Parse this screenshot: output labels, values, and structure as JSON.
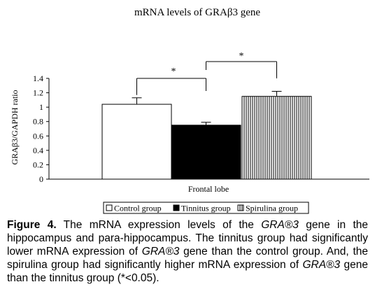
{
  "chart_data": {
    "type": "bar",
    "title": "mRNA levels of GRAβ3 gene",
    "ylabel": "GRAβ3/GAPDH ratio",
    "xlabel": "Frontal lobe",
    "ylim": [
      0,
      1.4
    ],
    "yticks": [
      "0",
      "0.2",
      "0.4",
      "0.6",
      "0.8",
      "1",
      "1.2",
      "1.4"
    ],
    "series": [
      {
        "name": "Control group",
        "values": [
          1.04
        ],
        "error": [
          0.09
        ],
        "color": "#ffffff",
        "pattern": "none"
      },
      {
        "name": "Tinnitus group",
        "values": [
          0.75
        ],
        "error": [
          0.04
        ],
        "color": "#000000",
        "pattern": "solid"
      },
      {
        "name": "Spirulina group",
        "values": [
          1.15
        ],
        "error": [
          0.07
        ],
        "color": "#ffffff",
        "pattern": "vertical-lines"
      }
    ],
    "annotations": [
      {
        "text": "*",
        "between": [
          "Control group",
          "Tinnitus group"
        ]
      },
      {
        "text": "*",
        "between": [
          "Tinnitus group",
          "Spirulina group"
        ]
      }
    ],
    "legend_position": "bottom",
    "grid": false
  },
  "caption": {
    "lead": "Figure 4.",
    "parts": [
      " The mRNA expression levels of the ",
      {
        "italic": "GRA®3"
      },
      " gene in the hippocampus and para-hippocampus. The tinnitus group had significantly lower mRNA expression of ",
      {
        "italic": "GRA®3"
      },
      " gene than the control group. And, the spirulina group had significantly higher mRNA expression of ",
      {
        "italic": "GRA®3"
      },
      " gene than the tinnitus group (*<0.05)."
    ]
  }
}
